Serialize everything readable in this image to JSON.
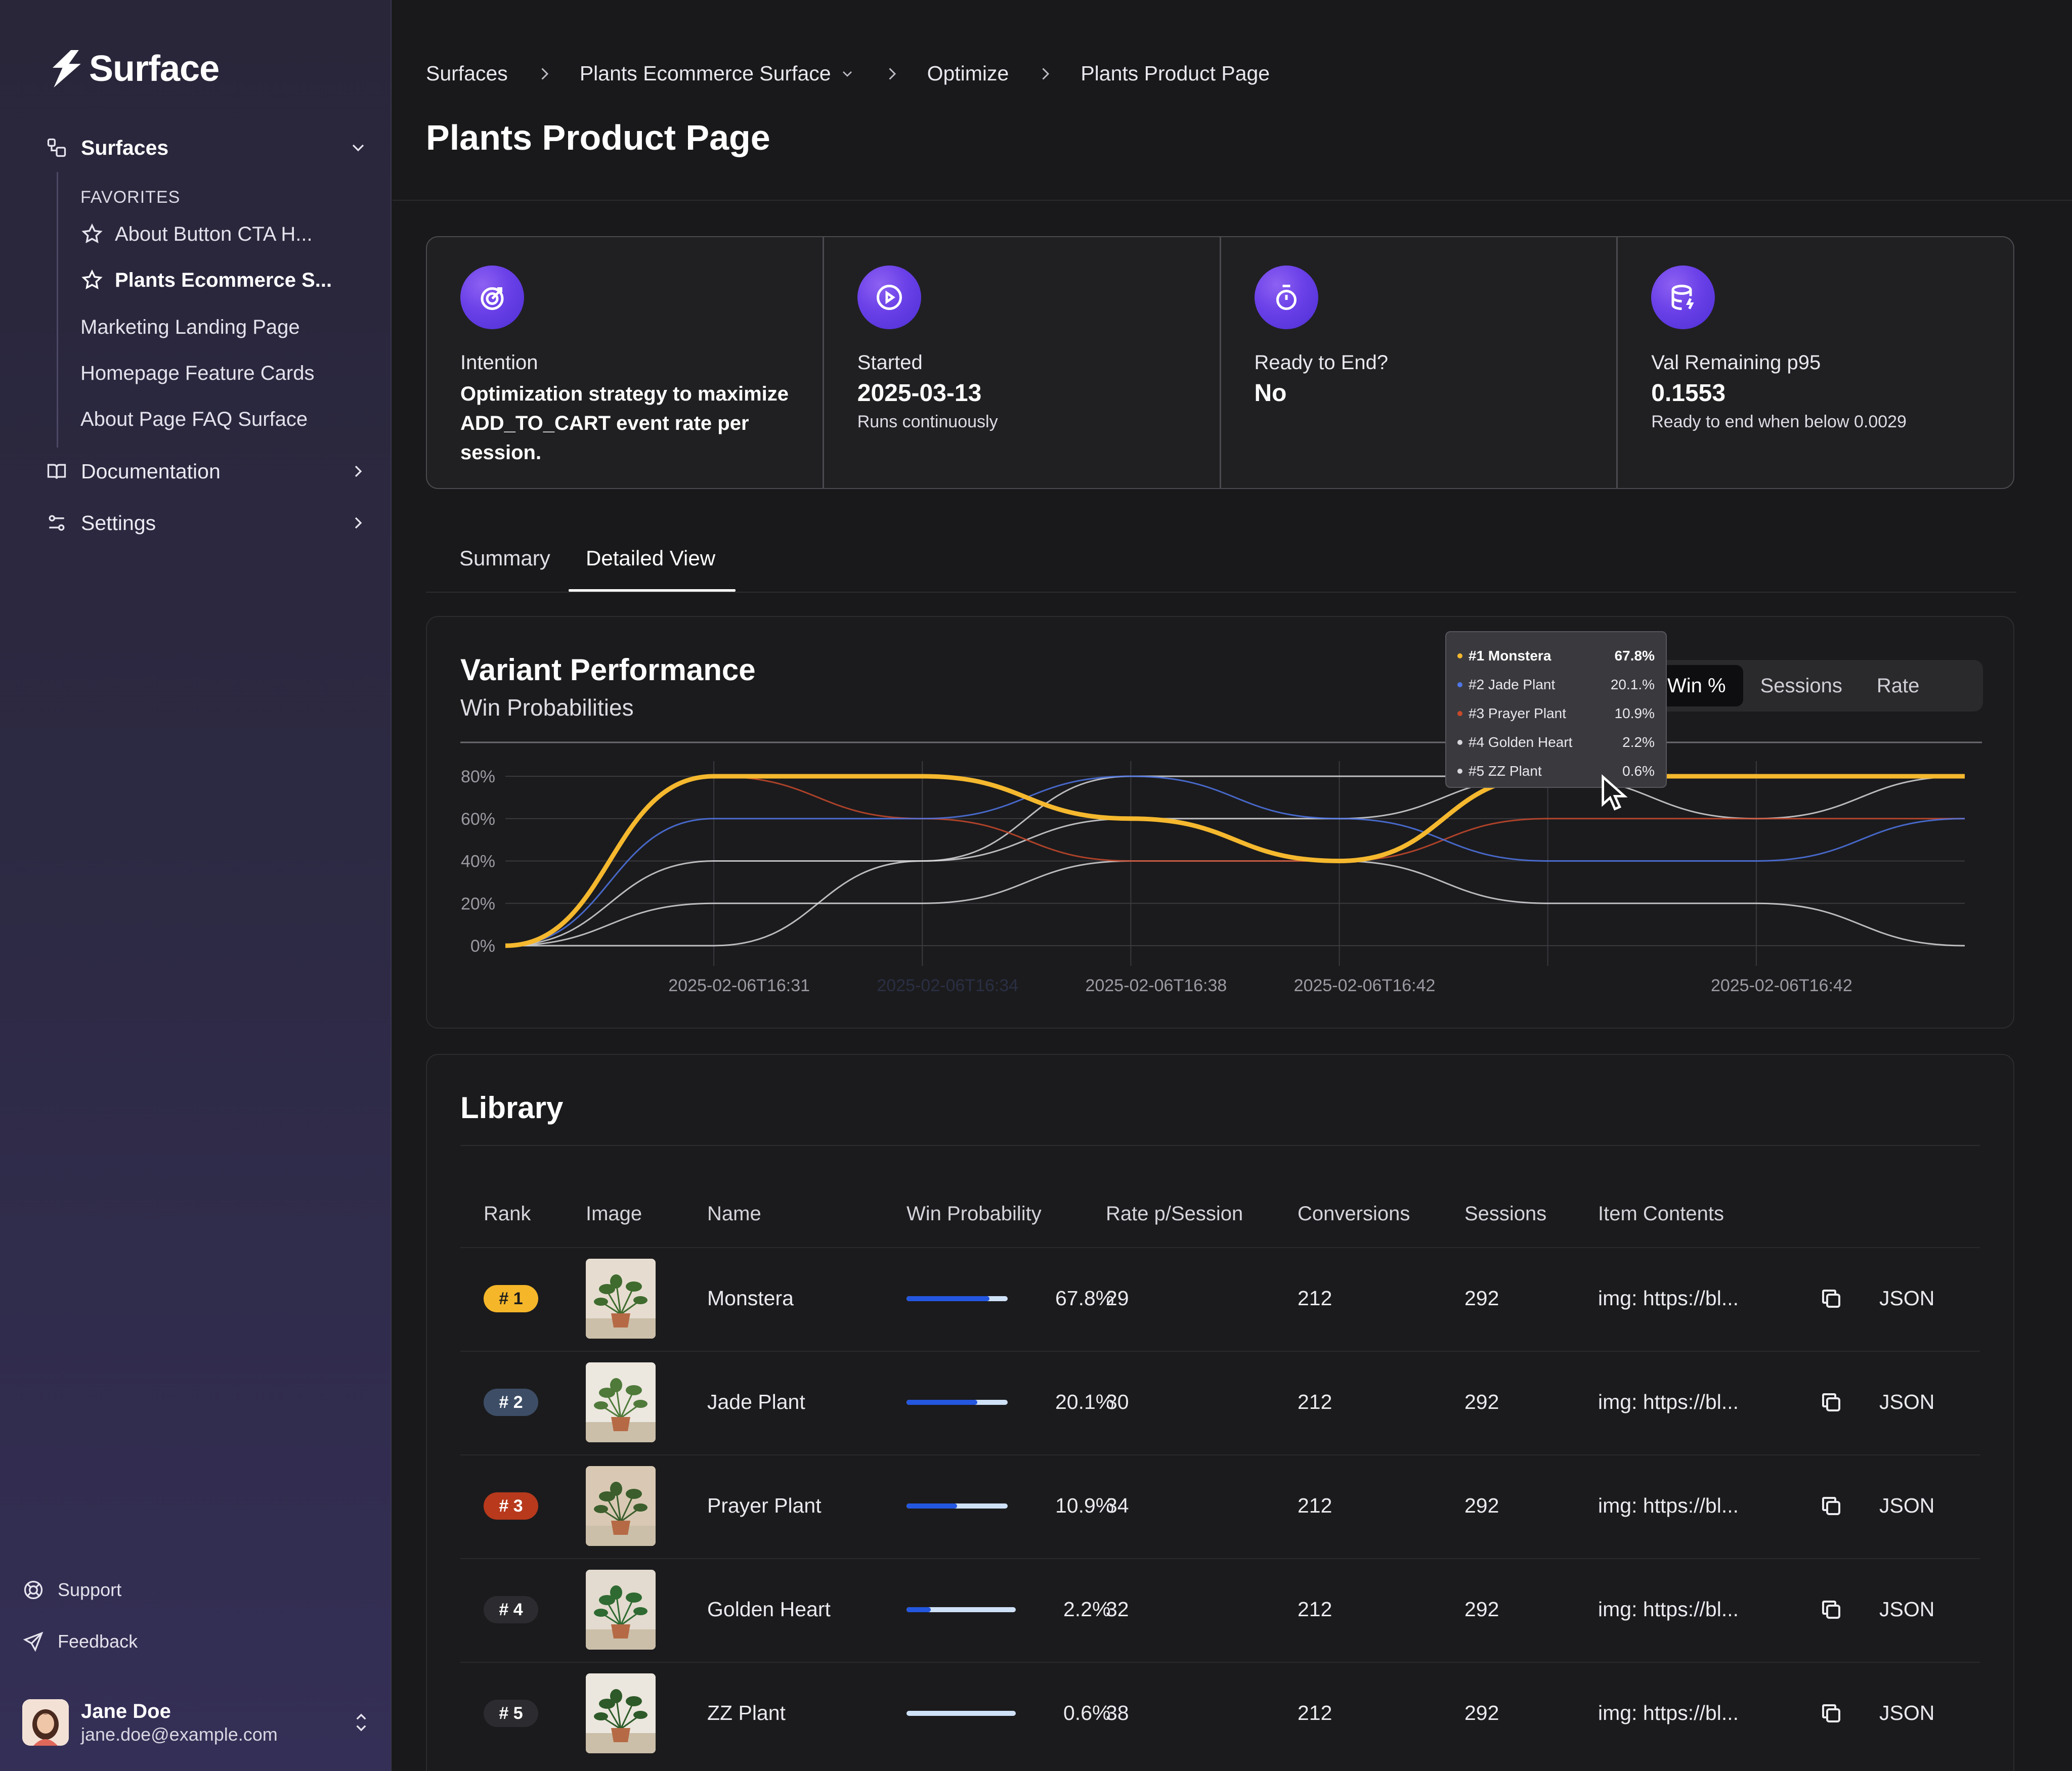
{
  "app": {
    "name": "Surface"
  },
  "sidebar": {
    "surfaces_label": "Surfaces",
    "favorites_header": "FAVORITES",
    "favorites": [
      {
        "label": "About Button CTA H..."
      },
      {
        "label": "Plants Ecommerce S..."
      }
    ],
    "items": [
      {
        "label": "Marketing Landing Page"
      },
      {
        "label": "Homepage Feature Cards"
      },
      {
        "label": "About Page FAQ Surface"
      }
    ],
    "documentation_label": "Documentation",
    "settings_label": "Settings",
    "support_label": "Support",
    "feedback_label": "Feedback",
    "user": {
      "name": "Jane Doe",
      "email": "jane.doe@example.com"
    }
  },
  "breadcrumb": [
    "Surfaces",
    "Plants Ecommerce Surface",
    "Optimize",
    "Plants Product Page"
  ],
  "page_title": "Plants Product Page",
  "stats": [
    {
      "label": "Intention",
      "value": "Optimization strategy to maximize ADD_TO_CART event rate per session.",
      "sub": ""
    },
    {
      "label": "Started",
      "value": "2025-03-13",
      "sub": "Runs continuously"
    },
    {
      "label": "Ready to End?",
      "value": "No",
      "sub": ""
    },
    {
      "label": "Val Remaining p95",
      "value": "0.1553",
      "sub": "Ready to end when below 0.0029"
    }
  ],
  "tabs": [
    "Summary",
    "Detailed View"
  ],
  "chart": {
    "title": "Variant Performance",
    "subtitle": "Win Probabilities",
    "toggle": [
      "Win %",
      "Sessions",
      "Rate"
    ],
    "tooltip": [
      {
        "label": "#1 Monstera",
        "value": "67.8%",
        "color": "#f5b82e"
      },
      {
        "label": "#2 Jade Plant",
        "value": "20.1.%",
        "color": "#4f76e8"
      },
      {
        "label": "#3 Prayer Plant",
        "value": "10.9%",
        "color": "#c8492c"
      },
      {
        "label": "#4 Golden Heart",
        "value": "2.2%",
        "color": "#d8d8dc"
      },
      {
        "label": "#5 ZZ Plant",
        "value": "0.6%",
        "color": "#d8d8dc"
      }
    ]
  },
  "chart_data": {
    "type": "line",
    "title": "Variant Performance",
    "subtitle": "Win Probabilities",
    "y_ticks": [
      "0%",
      "20%",
      "40%",
      "60%",
      "80%"
    ],
    "ylim": [
      0,
      80
    ],
    "x_labels": [
      "2025-02-06T16:31",
      "2025-02-06T16:34",
      "2025-02-06T16:38",
      "2025-02-06T16:42",
      "2025-02-06T16:42"
    ],
    "x": [
      0,
      1,
      2,
      3,
      4,
      5,
      6,
      7
    ],
    "series": [
      {
        "name": "#1 Monstera",
        "color": "#f5b82e",
        "values": [
          0,
          80,
          80,
          60,
          40,
          80,
          80,
          80
        ]
      },
      {
        "name": "#2 Jade Plant",
        "color": "#4f76e8",
        "values": [
          0,
          60,
          60,
          80,
          60,
          40,
          40,
          60
        ]
      },
      {
        "name": "#3 Prayer Plant",
        "color": "#c8492c",
        "values": [
          0,
          80,
          60,
          40,
          40,
          60,
          60,
          60
        ]
      },
      {
        "name": "#4 Golden Heart",
        "color": "#d8d8dc",
        "values": [
          0,
          40,
          40,
          60,
          60,
          80,
          60,
          80
        ]
      },
      {
        "name": "#5 ZZ Plant",
        "color": "#d8d8dc",
        "values": [
          0,
          20,
          20,
          40,
          40,
          20,
          20,
          0
        ]
      },
      {
        "name": "",
        "color": "#d8d8dc",
        "values": [
          0,
          0,
          40,
          80,
          80,
          80,
          80,
          80
        ]
      }
    ],
    "grid": true
  },
  "library": {
    "title": "Library",
    "columns": [
      "Rank",
      "Image",
      "Name",
      "Win Probability",
      "Rate p/Session",
      "Conversions",
      "Sessions",
      "Item Contents"
    ],
    "json_label": "JSON",
    "rows": [
      {
        "rank": "# 1",
        "rank_color": "#f5b62a",
        "rank_text": "#1c1c1c",
        "name": "Monstera",
        "win": "67.8%",
        "win_frac": 0.82,
        "rate": "29",
        "conversions": "212",
        "sessions": "292",
        "contents": "img: https://bl..."
      },
      {
        "rank": "# 2",
        "rank_color": "#3d4d66",
        "rank_text": "#ffffff",
        "name": "Jade Plant",
        "win": "20.1%",
        "win_frac": 0.7,
        "rate": "30",
        "conversions": "212",
        "sessions": "292",
        "contents": "img: https://bl..."
      },
      {
        "rank": "# 3",
        "rank_color": "#b8391c",
        "rank_text": "#ffffff",
        "name": "Prayer Plant",
        "win": "10.9%",
        "win_frac": 0.5,
        "rate": "34",
        "conversions": "212",
        "sessions": "292",
        "contents": "img: https://bl..."
      },
      {
        "rank": "# 4",
        "rank_color": "#2c2c30",
        "rank_text": "#ffffff",
        "name": "Golden Heart",
        "win": "2.2%",
        "win_frac": 0.22,
        "rate": "32",
        "conversions": "212",
        "sessions": "292",
        "contents": "img: https://bl..."
      },
      {
        "rank": "# 5",
        "rank_color": "#2c2c30",
        "rank_text": "#ffffff",
        "name": "ZZ Plant",
        "win": "0.6%",
        "win_frac": 0.0,
        "rate": "38",
        "conversions": "212",
        "sessions": "292",
        "contents": "img: https://bl..."
      }
    ]
  }
}
